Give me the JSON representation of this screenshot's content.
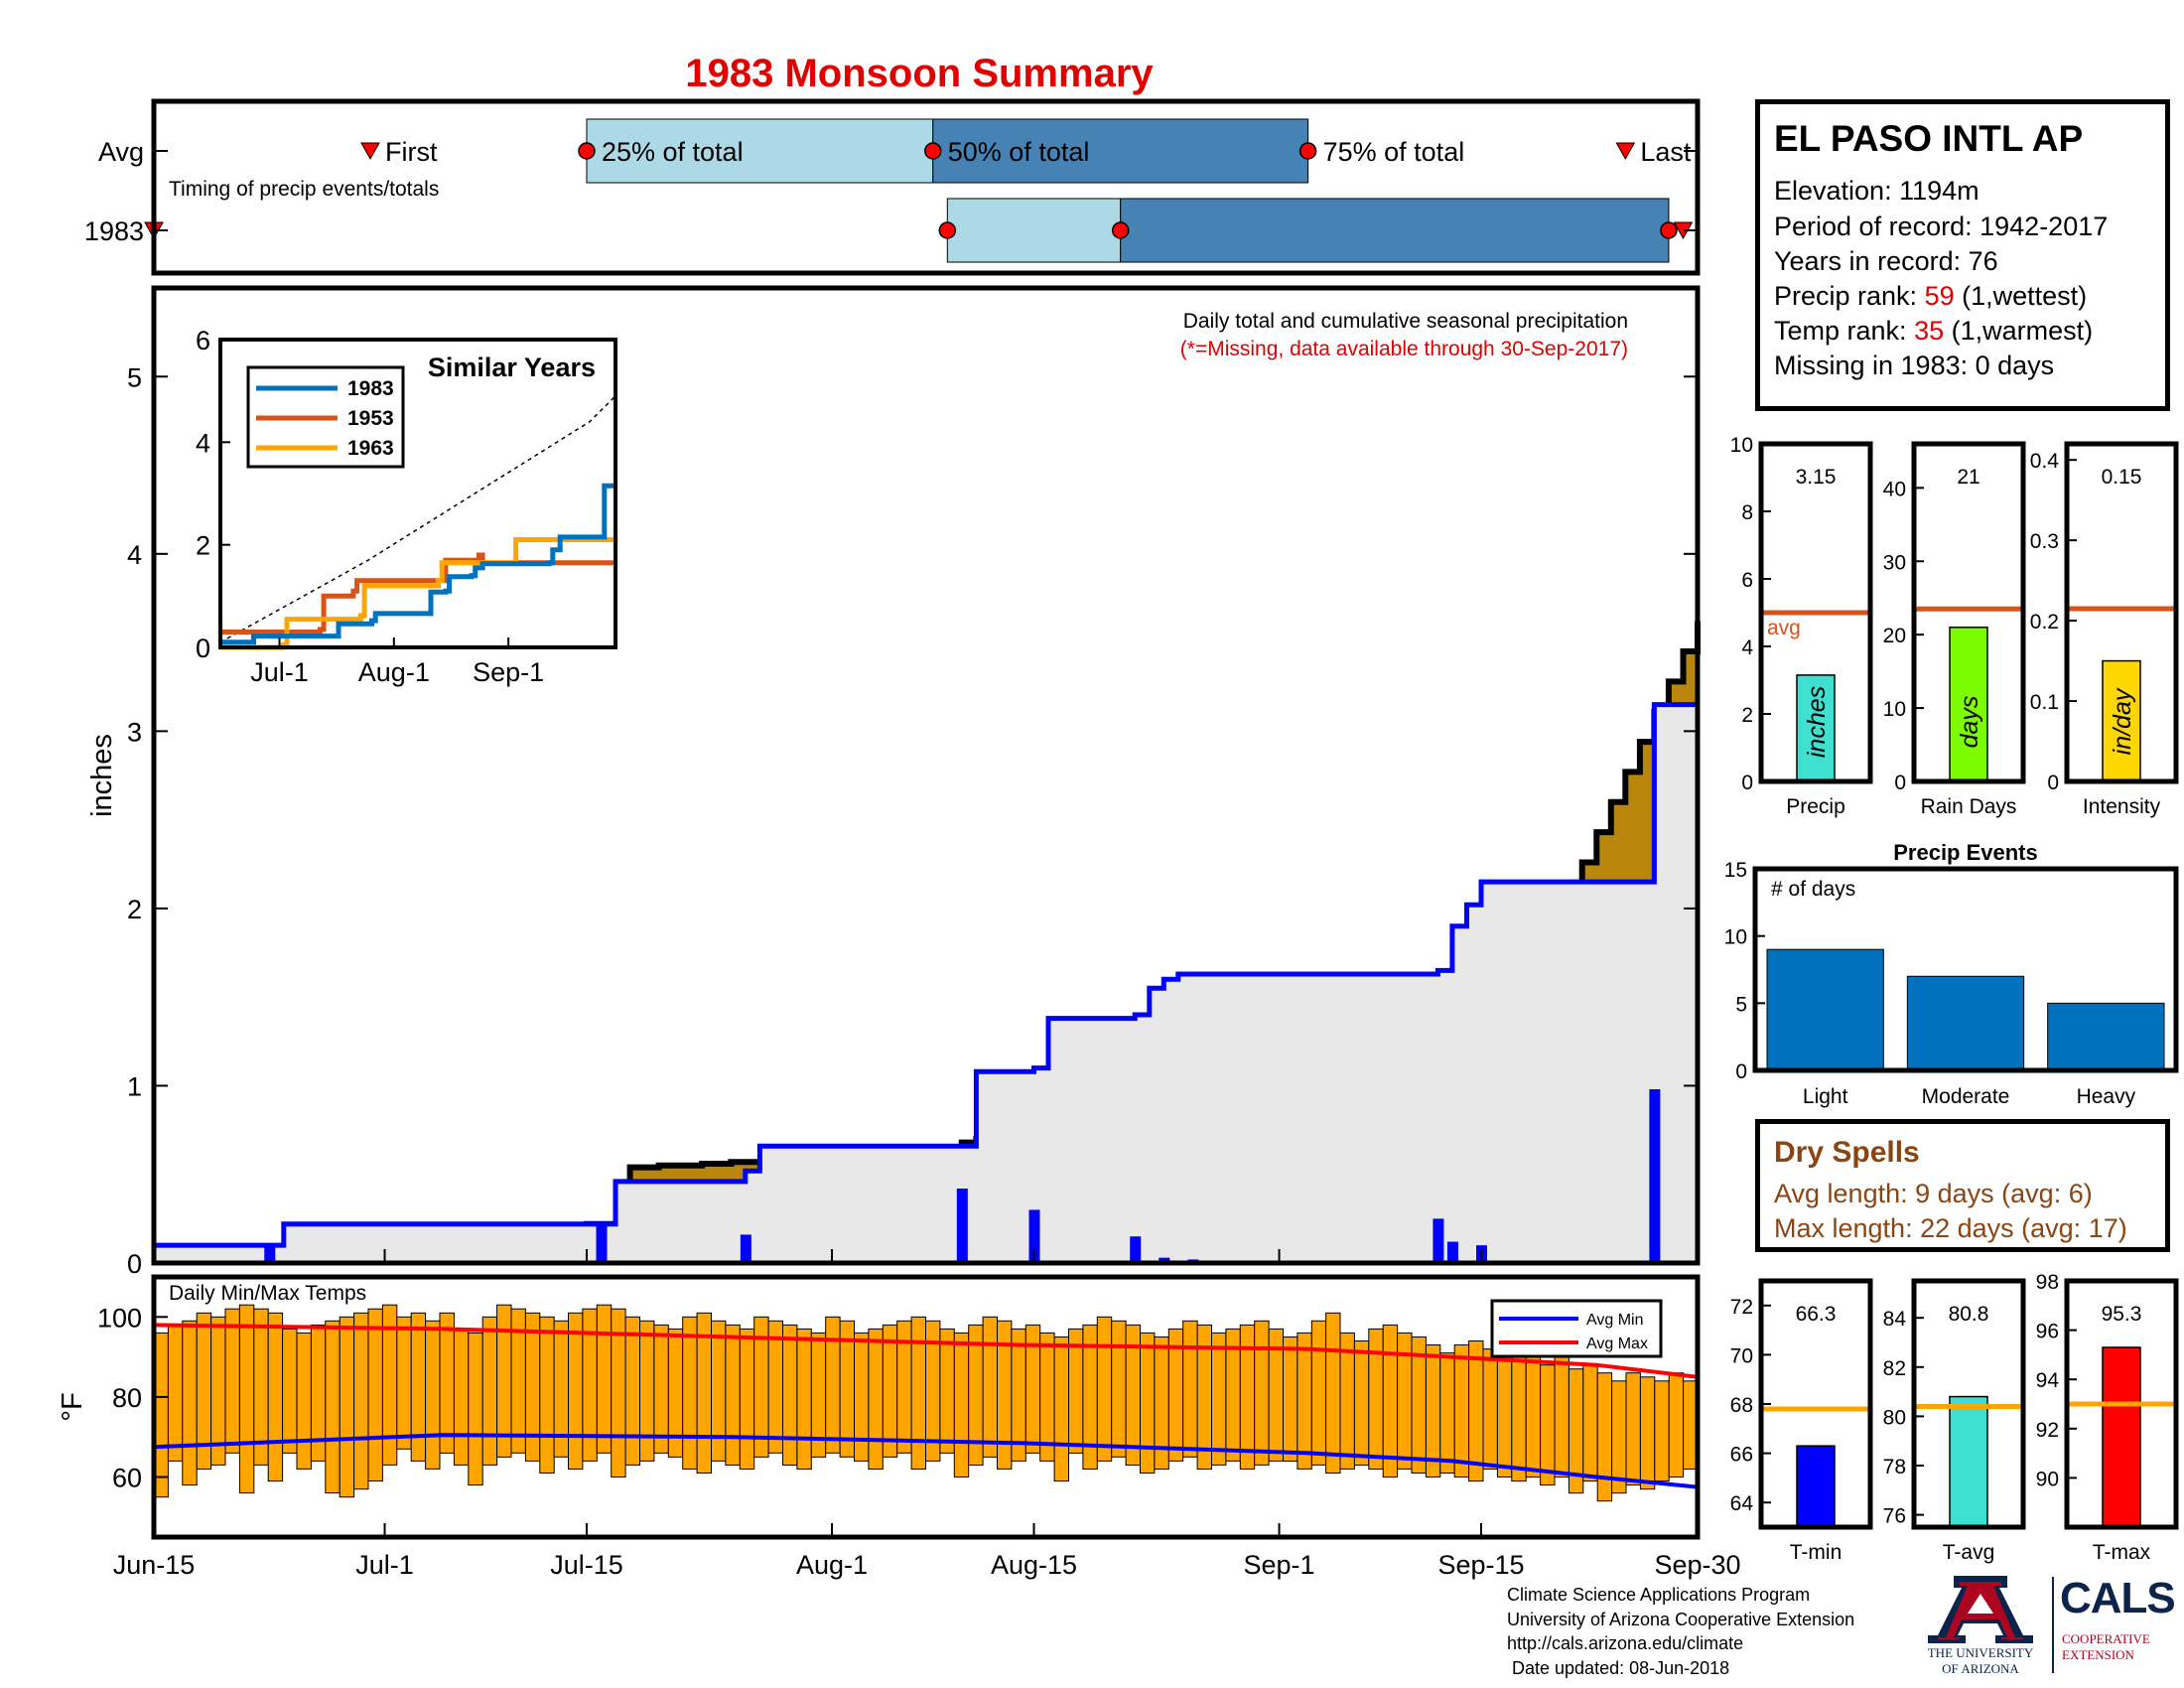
{
  "title": "1983 Monsoon Summary",
  "station": {
    "name": "EL PASO INTL AP",
    "elevation_label": "Elevation:",
    "elevation": "1194m",
    "period_label": "Period of record:",
    "period": "1942-2017",
    "years_label": "Years in record:",
    "years": "76",
    "precip_rank_label": "Precip rank:",
    "precip_rank": "59",
    "precip_rank_note": "(1,wettest)",
    "temp_rank_label": "Temp rank:",
    "temp_rank": "35",
    "temp_rank_note": "(1,warmest)",
    "missing_label": "Missing in 1983:",
    "missing": "0 days"
  },
  "colors": {
    "title_red": "#e00000",
    "cumulative_fill": "#b8860b",
    "avg_fill": "#e8e8e8",
    "avg_line": "#0000ff",
    "daily_bar": "#0000ff",
    "temp_bar": "#ffa500",
    "light_blue": "#add8e6",
    "steel_blue": "#4682b4",
    "precip_bar": "#40e0d0",
    "raindays_bar": "#7cfc00",
    "intensity_bar": "#ffd700",
    "event_bar": "#0072bd",
    "orange_line": "#d95319",
    "yellow_line": "#ffa500",
    "tmin_bar": "#0000ff",
    "tavg_bar": "#40e0d0",
    "tmax_bar": "#ff0000",
    "brown": "#8b4513"
  },
  "timing": {
    "caption": "Timing of precip events/totals",
    "row_labels": [
      "Avg",
      "1983"
    ],
    "avg": {
      "first": "Jun-30",
      "p25": "Jul-15",
      "p50": "Aug-8",
      "p75": "Sep-3",
      "last": "Sep-25"
    },
    "y1983": {
      "first": "Jun-15",
      "p25": "Aug-9",
      "p50": "Aug-21",
      "p75": "Sep-28",
      "last": "Sep-29"
    },
    "labels": {
      "first": "First",
      "p25": "25% of total",
      "p50": "50% of total",
      "p75": "75% of total",
      "last": "Last"
    }
  },
  "main_chart": {
    "type": "area",
    "caption_line1": "Daily total and cumulative seasonal precipitation",
    "caption_line2": "(*=Missing, data available through 30-Sep-2017)",
    "ylabel": "inches",
    "ylim": [
      0,
      5.5
    ],
    "yticks": [
      "0",
      "1",
      "2",
      "3",
      "4",
      "5"
    ],
    "xticks": [
      "Jun-15",
      "Jul-1",
      "Jul-15",
      "Aug-1",
      "Aug-15",
      "Sep-1",
      "Sep-15",
      "Sep-30"
    ],
    "xtick_days": [
      0,
      16,
      30,
      47,
      61,
      78,
      92,
      107
    ],
    "series": [
      {
        "name": "Average cumulative",
        "x_days": [
          0,
          9,
          10,
          32,
          33,
          55,
          56,
          75,
          76,
          77,
          95,
          96,
          107
        ],
        "values": [
          0.04,
          0.05,
          0.17,
          0.22,
          0.54,
          0.62,
          0.68,
          1.1,
          1.25,
          1.38,
          1.62,
          1.75,
          3.62
        ]
      },
      {
        "name": "1983 cumulative",
        "x_days": [
          0,
          8,
          9,
          31,
          32,
          41,
          42,
          56,
          57,
          61,
          62,
          68,
          69,
          70,
          71,
          89,
          90,
          91,
          92,
          103,
          104,
          107
        ],
        "values": [
          0.1,
          0.1,
          0.22,
          0.22,
          0.46,
          0.52,
          0.66,
          0.66,
          1.08,
          1.1,
          1.38,
          1.4,
          1.55,
          1.6,
          1.63,
          1.65,
          1.9,
          2.02,
          2.15,
          2.15,
          3.15,
          3.15
        ]
      }
    ],
    "daily_bars": {
      "x_days": [
        8,
        31,
        41,
        56,
        61,
        68,
        70,
        72,
        89,
        90,
        92,
        104
      ],
      "values": [
        0.1,
        0.23,
        0.16,
        0.42,
        0.3,
        0.15,
        0.03,
        0.02,
        0.25,
        0.12,
        0.1,
        0.98
      ]
    }
  },
  "similar_years": {
    "title": "Similar Years",
    "ylim": [
      0,
      6
    ],
    "yticks": [
      "0",
      "2",
      "4",
      "6"
    ],
    "xticks": [
      "Jul-1",
      "Aug-1",
      "Sep-1"
    ],
    "xtick_days": [
      16,
      47,
      78
    ],
    "series": [
      {
        "name": "1983",
        "x_days": [
          0,
          8,
          9,
          31,
          32,
          41,
          42,
          56,
          57,
          61,
          62,
          68,
          69,
          71,
          89,
          90,
          92,
          103,
          104,
          107
        ],
        "values": [
          0.1,
          0.1,
          0.22,
          0.22,
          0.46,
          0.52,
          0.66,
          0.66,
          1.08,
          1.1,
          1.38,
          1.4,
          1.55,
          1.63,
          1.65,
          1.9,
          2.15,
          2.15,
          3.15,
          3.15
        ]
      },
      {
        "name": "1953",
        "x_days": [
          0,
          27,
          28,
          36,
          37,
          60,
          61,
          70,
          71,
          107
        ],
        "values": [
          0.3,
          0.35,
          1.0,
          1.1,
          1.3,
          1.3,
          1.7,
          1.8,
          1.65,
          1.65
        ]
      },
      {
        "name": "1963",
        "x_days": [
          0,
          17,
          18,
          38,
          39,
          59,
          60,
          79,
          80,
          107
        ],
        "values": [
          0.0,
          0.05,
          0.55,
          0.62,
          1.2,
          1.3,
          1.65,
          1.65,
          2.1,
          2.15
        ]
      }
    ],
    "climatology": {
      "x_days": [
        0,
        20,
        40,
        60,
        80,
        100,
        107
      ],
      "values": [
        0.1,
        0.9,
        1.7,
        2.6,
        3.5,
        4.4,
        4.9
      ]
    }
  },
  "temps": {
    "caption": "Daily Min/Max Temps",
    "ylabel": "°F",
    "ylim": [
      45,
      110
    ],
    "yticks": [
      "60",
      "80",
      "100"
    ],
    "legend": [
      "Avg Min",
      "Avg Max"
    ],
    "avg_min_points": {
      "x_days": [
        0,
        20,
        40,
        60,
        80,
        90,
        100,
        107
      ],
      "values": [
        67.5,
        70.5,
        70,
        68.5,
        66,
        64,
        60,
        57.5
      ]
    },
    "avg_max_points": {
      "x_days": [
        0,
        20,
        40,
        60,
        80,
        90,
        100,
        107
      ],
      "values": [
        98,
        97,
        95,
        93,
        92,
        90,
        88,
        85
      ]
    },
    "daily_min": [
      55,
      64,
      58,
      62,
      63,
      66,
      56,
      63,
      59,
      66,
      62,
      64,
      56,
      55,
      57,
      59,
      63,
      67,
      64,
      62,
      66,
      63,
      58,
      63,
      65,
      66,
      64,
      61,
      65,
      62,
      64,
      66,
      60,
      63,
      64,
      66,
      65,
      62,
      61,
      64,
      63,
      62,
      65,
      66,
      63,
      62,
      65,
      66,
      65,
      64,
      62,
      65,
      66,
      62,
      64,
      66,
      60,
      63,
      65,
      62,
      64,
      66,
      64,
      59,
      66,
      62,
      64,
      65,
      63,
      61,
      62,
      64,
      65,
      62,
      63,
      64,
      62,
      63,
      64,
      64,
      62,
      63,
      61,
      62,
      63,
      62,
      60,
      62,
      61,
      60,
      61,
      60,
      59,
      62,
      60,
      59,
      60,
      58,
      60,
      56,
      59,
      54,
      56,
      58,
      57,
      59,
      60,
      62
    ],
    "daily_max": [
      96,
      98,
      99,
      101,
      100,
      102,
      103,
      102,
      101,
      97,
      96,
      98,
      99,
      100,
      101,
      102,
      103,
      100,
      101,
      99,
      101,
      97,
      96,
      100,
      103,
      102,
      101,
      100,
      99,
      101,
      102,
      103,
      102,
      100,
      99,
      98,
      97,
      100,
      101,
      99,
      98,
      97,
      100,
      99,
      98,
      97,
      96,
      100,
      99,
      96,
      97,
      98,
      99,
      100,
      99,
      97,
      96,
      98,
      100,
      99,
      97,
      98,
      96,
      95,
      97,
      98,
      100,
      99,
      98,
      96,
      95,
      97,
      99,
      98,
      96,
      97,
      98,
      99,
      97,
      95,
      96,
      99,
      101,
      96,
      94,
      97,
      98,
      96,
      95,
      93,
      91,
      93,
      94,
      92,
      90,
      91,
      92,
      88,
      91,
      87,
      88,
      86,
      84,
      86,
      85,
      84,
      86,
      84
    ]
  },
  "stat_bars": [
    {
      "label": "Precip",
      "value": 3.15,
      "value_text": "3.15",
      "unit": "inches",
      "avg": 5.0,
      "ylim": [
        0,
        10
      ],
      "yticks": [
        "0",
        "2",
        "4",
        "6",
        "8",
        "10"
      ],
      "avg_label": "avg"
    },
    {
      "label": "Rain Days",
      "value": 21,
      "value_text": "21",
      "unit": "days",
      "avg": 23.5,
      "ylim": [
        0,
        46
      ],
      "yticks": [
        "0",
        "10",
        "20",
        "30",
        "40"
      ]
    },
    {
      "label": "Intensity",
      "value": 0.15,
      "value_text": "0.15",
      "unit": "in/day",
      "avg": 0.215,
      "ylim": [
        0,
        0.42
      ],
      "yticks": [
        "0",
        "0.1",
        "0.2",
        "0.3",
        "0.4"
      ]
    }
  ],
  "precip_events": {
    "title": "Precip Events",
    "caption": "# of days",
    "categories": [
      "Light",
      "Moderate",
      "Heavy"
    ],
    "values": [
      9,
      7,
      5
    ],
    "ylim": [
      0,
      15
    ],
    "yticks": [
      "0",
      "5",
      "10",
      "15"
    ]
  },
  "dry_spells": {
    "title": "Dry Spells",
    "avg_length_label": "Avg length:",
    "avg_length": "9 days (avg: 6)",
    "max_length_label": "Max length:",
    "max_length": "22 days (avg: 17)"
  },
  "temp_bars": [
    {
      "label": "T-min",
      "value": 66.3,
      "value_text": "66.3",
      "avg": 67.8,
      "ylim": [
        63,
        73
      ],
      "yticks": [
        "64",
        "66",
        "68",
        "70",
        "72"
      ]
    },
    {
      "label": "T-avg",
      "value": 80.8,
      "value_text": "80.8",
      "avg": 80.4,
      "ylim": [
        75.5,
        85.5
      ],
      "yticks": [
        "76",
        "78",
        "80",
        "82",
        "84"
      ]
    },
    {
      "label": "T-max",
      "value": 95.3,
      "value_text": "95.3",
      "avg": 93.0,
      "ylim": [
        88,
        98
      ],
      "yticks": [
        "90",
        "92",
        "94",
        "96",
        "98"
      ]
    }
  ],
  "footer": {
    "line1": "Climate Science Applications Program",
    "line2": "University of Arizona Cooperative Extension",
    "line3": "http://cals.arizona.edu/climate",
    "line4": " Date updated: 08-Jun-2018"
  },
  "logos": {
    "ua_line1": "THE UNIVERSITY",
    "ua_line2": "OF ARIZONA",
    "cals": "CALS",
    "cals_line1": "COOPERATIVE",
    "cals_line2": "EXTENSION"
  }
}
